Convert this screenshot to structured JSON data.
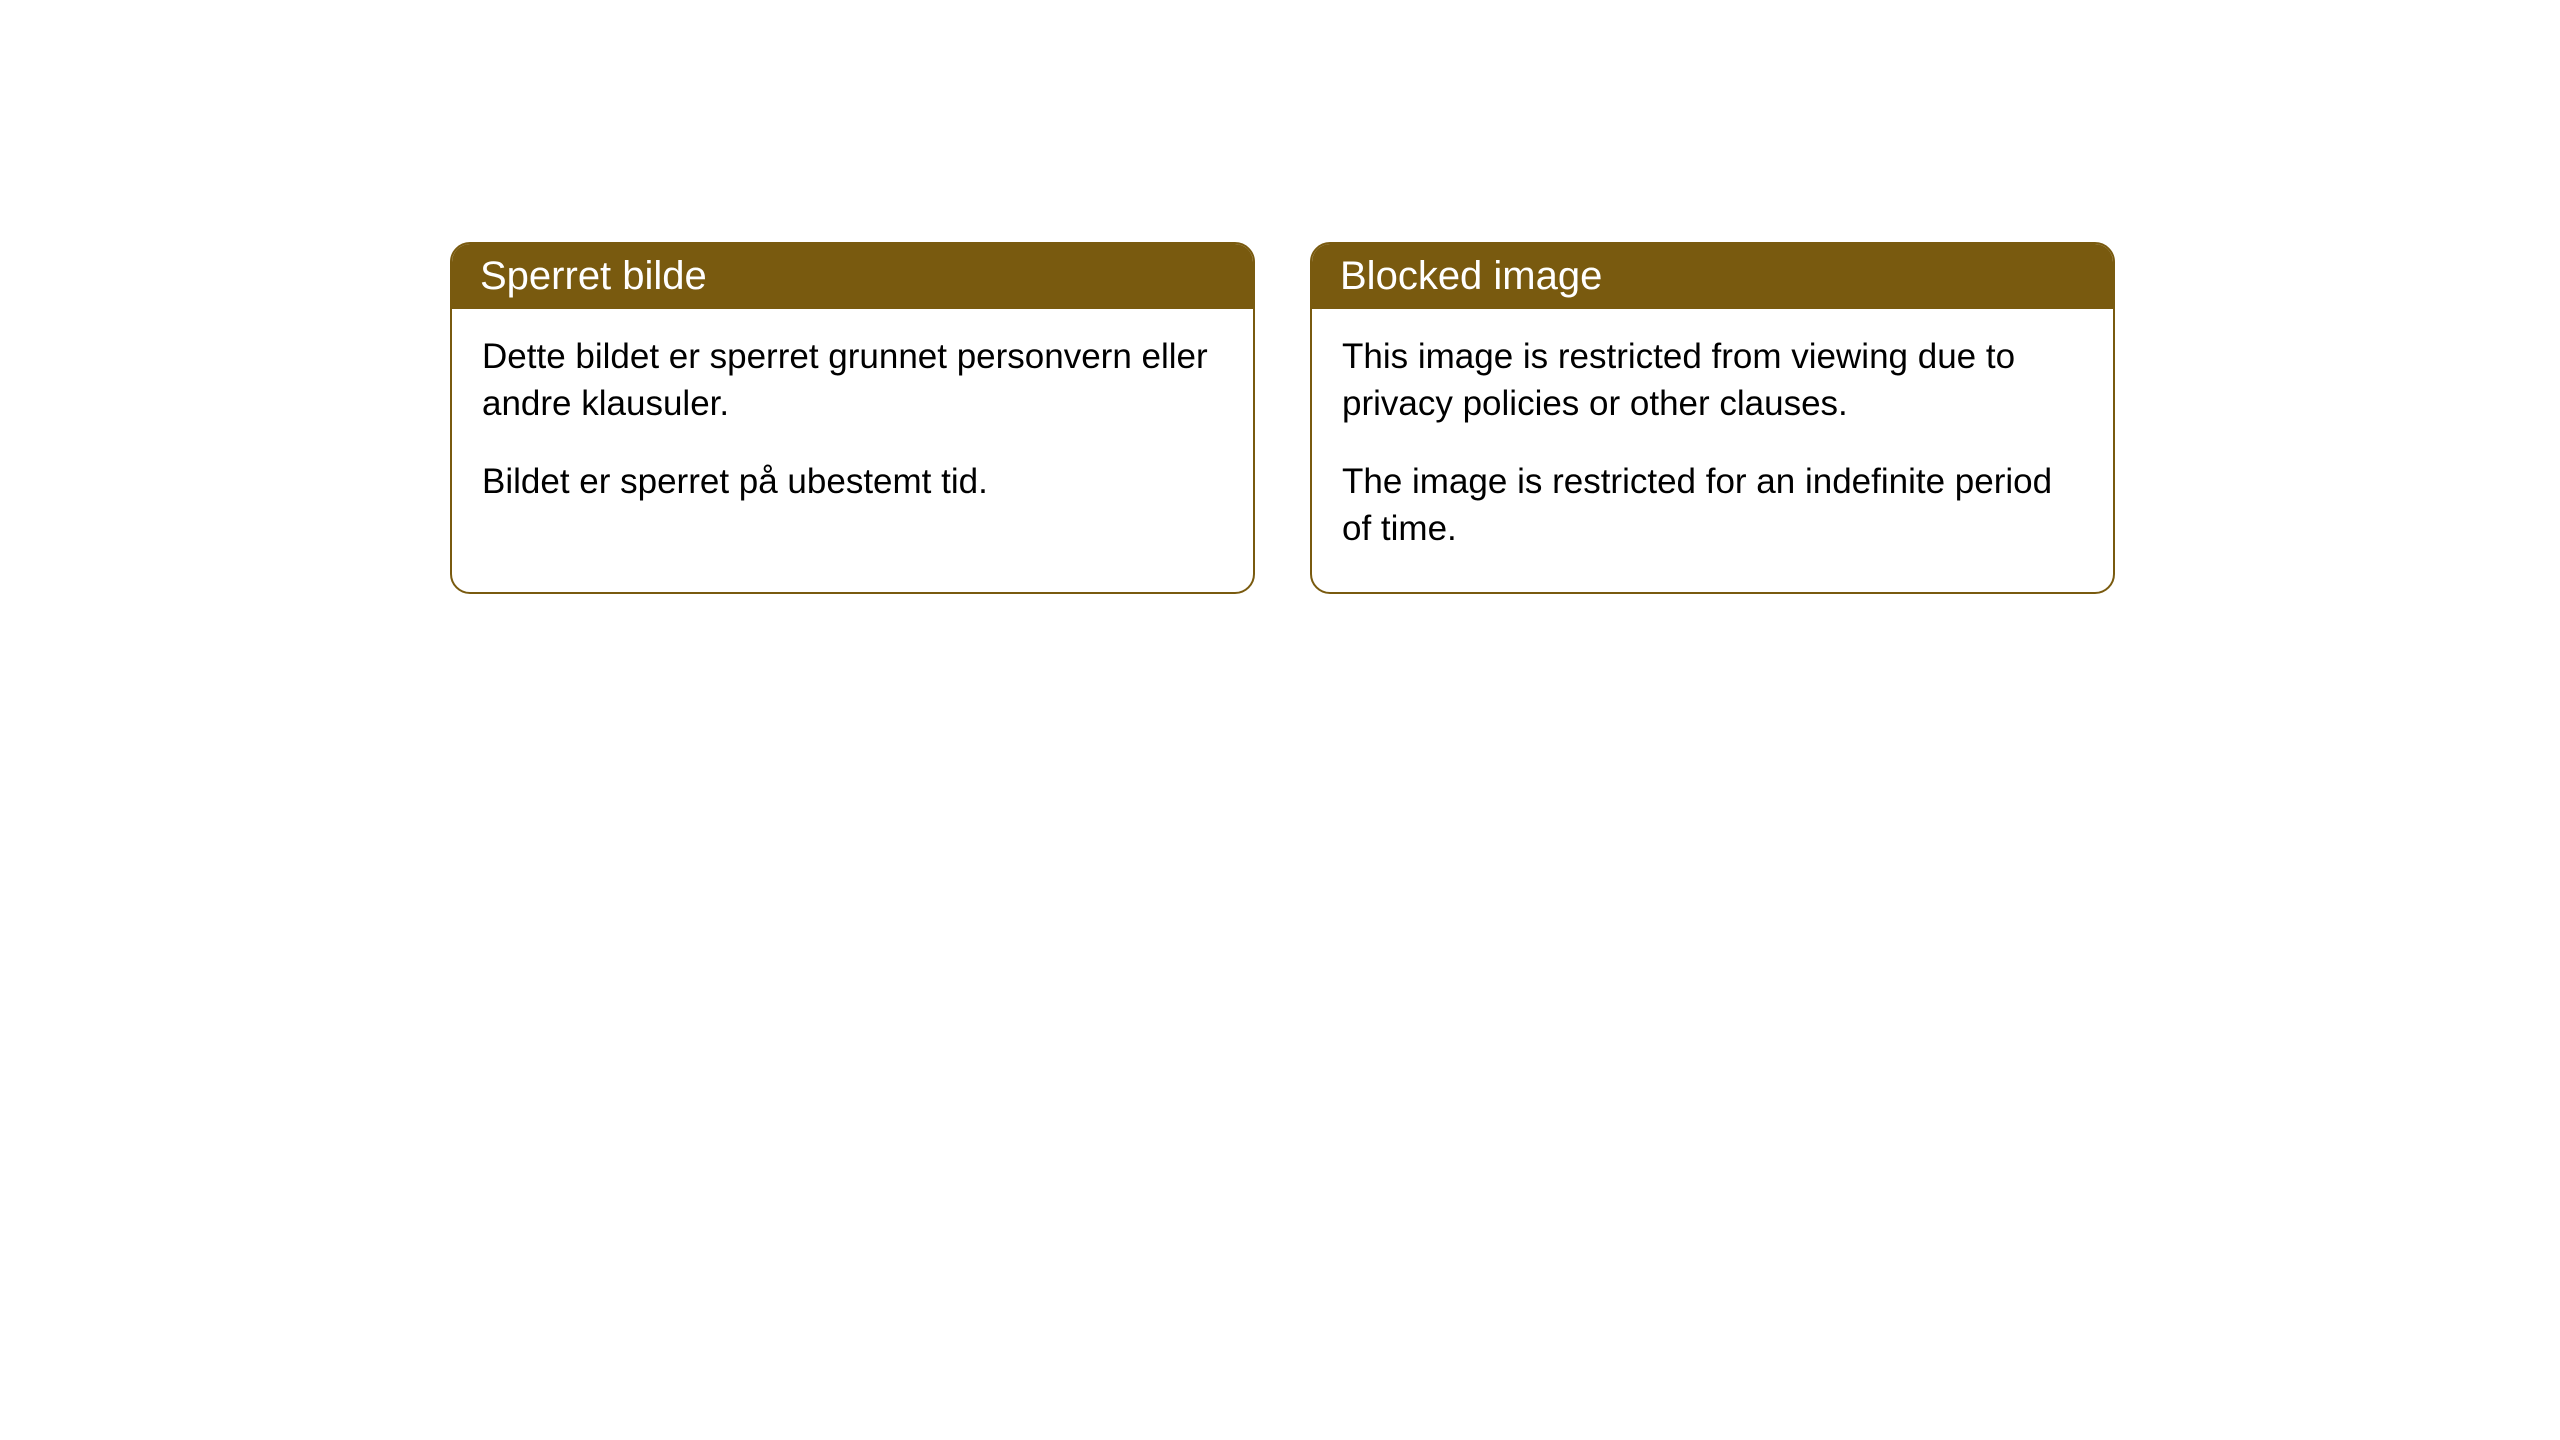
{
  "cards": [
    {
      "title": "Sperret bilde",
      "paragraph1": "Dette bildet er sperret grunnet personvern eller andre klausuler.",
      "paragraph2": "Bildet er sperret på ubestemt tid."
    },
    {
      "title": "Blocked image",
      "paragraph1": "This image is restricted from viewing due to privacy policies or other clauses.",
      "paragraph2": "The image is restricted for an indefinite period of time."
    }
  ],
  "styling": {
    "header_bg_color": "#795a0f",
    "header_text_color": "#ffffff",
    "border_color": "#795a0f",
    "body_bg_color": "#ffffff",
    "body_text_color": "#000000",
    "border_radius": 20,
    "title_fontsize": 40,
    "body_fontsize": 35
  }
}
